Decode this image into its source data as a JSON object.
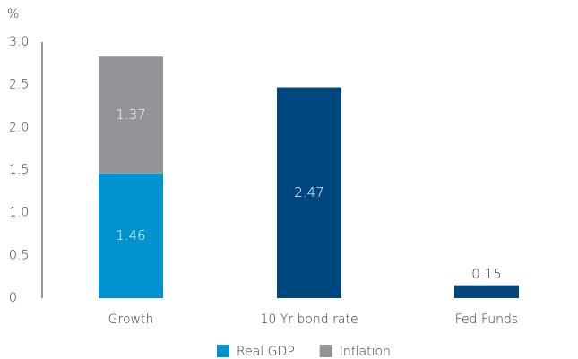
{
  "chart_data": {
    "type": "stacked_bar",
    "y_label": "%",
    "categories": [
      "Growth",
      "10 Yr bond rate",
      "Fed Funds"
    ],
    "series": [
      {
        "name": "Real GDP",
        "color": "#0093d0",
        "values": [
          1.46,
          null,
          null
        ]
      },
      {
        "name": "Inflation",
        "color": "#939598",
        "values": [
          1.37,
          null,
          null
        ]
      },
      {
        "color": "#00467f",
        "values": [
          null,
          2.47,
          0.15
        ]
      }
    ],
    "ylim": [
      0,
      3
    ],
    "yticks": [
      0,
      0.5,
      {
        "value": 1,
        "label": "1.0"
      },
      1.5,
      {
        "value": 2,
        "label": "2.0"
      },
      2.5,
      {
        "value": 3,
        "label": "3.0"
      }
    ],
    "legend": "bottom"
  }
}
